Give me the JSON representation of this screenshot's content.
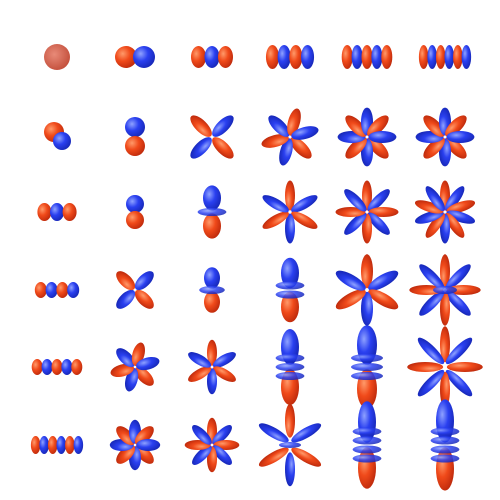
{
  "grid": {
    "rows": 6,
    "cols": 6
  },
  "colors": {
    "background": "#ffffff",
    "positive_lobe": "#f0441a",
    "negative_lobe": "#1f3cf0",
    "node_highlight": "#c9d4f2"
  },
  "cells": [
    {
      "row": 0,
      "col": 0,
      "shape": "s-orbital-sphere"
    },
    {
      "row": 0,
      "col": 1,
      "shape": "p-orbital-horizontal"
    },
    {
      "row": 0,
      "col": 2,
      "shape": "d-orbital-horizontal"
    },
    {
      "row": 0,
      "col": 3,
      "shape": "f-orbital-horizontal"
    },
    {
      "row": 0,
      "col": 4,
      "shape": "g-orbital-horizontal"
    },
    {
      "row": 0,
      "col": 5,
      "shape": "h-orbital-horizontal"
    },
    {
      "row": 1,
      "col": 0,
      "shape": "p-orbital-diagonal-small"
    },
    {
      "row": 1,
      "col": 1,
      "shape": "p-orbital-vertical"
    },
    {
      "row": 1,
      "col": 2,
      "shape": "d-orbital-cloverleaf"
    },
    {
      "row": 1,
      "col": 3,
      "shape": "f-orbital-cloverleaf"
    },
    {
      "row": 1,
      "col": 4,
      "shape": "g-orbital-cloverleaf"
    },
    {
      "row": 1,
      "col": 5,
      "shape": "h-orbital-cloverleaf"
    },
    {
      "row": 2,
      "col": 0,
      "shape": "d-orbital-horizontal-small"
    },
    {
      "row": 2,
      "col": 1,
      "shape": "p-orbital-vertical-small"
    },
    {
      "row": 2,
      "col": 2,
      "shape": "dz2-orbital"
    },
    {
      "row": 2,
      "col": 3,
      "shape": "f-orbital-star"
    },
    {
      "row": 2,
      "col": 4,
      "shape": "g-orbital-star"
    },
    {
      "row": 2,
      "col": 5,
      "shape": "h-orbital-star"
    },
    {
      "row": 3,
      "col": 0,
      "shape": "f-orbital-horizontal-small"
    },
    {
      "row": 3,
      "col": 1,
      "shape": "d-orbital-cloverleaf-small"
    },
    {
      "row": 3,
      "col": 2,
      "shape": "dz2-orbital-small"
    },
    {
      "row": 3,
      "col": 3,
      "shape": "fz3-orbital"
    },
    {
      "row": 3,
      "col": 4,
      "shape": "g-orbital-six-lobe"
    },
    {
      "row": 3,
      "col": 5,
      "shape": "h-orbital-multi-lobe"
    },
    {
      "row": 4,
      "col": 0,
      "shape": "g-orbital-horizontal-small"
    },
    {
      "row": 4,
      "col": 1,
      "shape": "f-orbital-cloverleaf-small"
    },
    {
      "row": 4,
      "col": 2,
      "shape": "f-orbital-star-small"
    },
    {
      "row": 4,
      "col": 3,
      "shape": "fz3-orbital-tall"
    },
    {
      "row": 4,
      "col": 4,
      "shape": "gz4-orbital"
    },
    {
      "row": 4,
      "col": 5,
      "shape": "h-orbital-fan"
    },
    {
      "row": 5,
      "col": 0,
      "shape": "h-orbital-horizontal-small"
    },
    {
      "row": 5,
      "col": 1,
      "shape": "g-orbital-cloverleaf-small"
    },
    {
      "row": 5,
      "col": 2,
      "shape": "g-orbital-star-small"
    },
    {
      "row": 5,
      "col": 3,
      "shape": "g-orbital-stacked"
    },
    {
      "row": 5,
      "col": 4,
      "shape": "hz5-orbital"
    },
    {
      "row": 5,
      "col": 5,
      "shape": "hz5-orbital-tall"
    }
  ]
}
